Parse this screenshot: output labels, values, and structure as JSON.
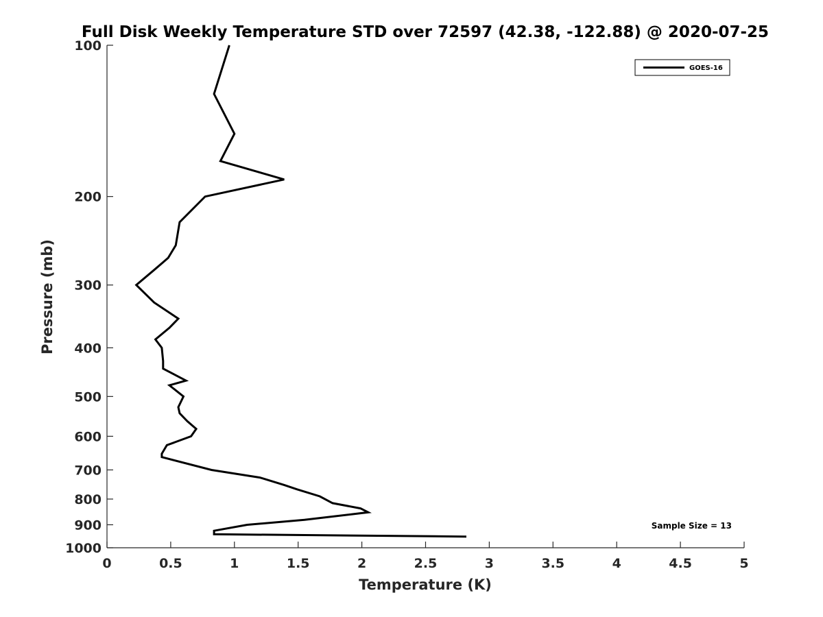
{
  "chart_data": {
    "type": "line",
    "title": "Full Disk Weekly Temperature STD over 72597 (42.38, -122.88) @ 2020-07-25",
    "xlabel": "Temperature (K)",
    "ylabel": "Pressure (mb)",
    "xlim": [
      0,
      5
    ],
    "ylim": [
      1000,
      100
    ],
    "y_scale": "log",
    "x_ticks": [
      0,
      0.5,
      1,
      1.5,
      2,
      2.5,
      3,
      3.5,
      4,
      4.5,
      5
    ],
    "x_tick_labels": [
      "0",
      "0.5",
      "1",
      "1.5",
      "2",
      "2.5",
      "3",
      "3.5",
      "4",
      "4.5",
      "5"
    ],
    "y_ticks": [
      100,
      200,
      300,
      400,
      500,
      600,
      700,
      800,
      900,
      1000
    ],
    "y_tick_labels": [
      "100",
      "200",
      "300",
      "400",
      "500",
      "600",
      "700",
      "800",
      "900",
      "1000"
    ],
    "grid": false,
    "legend_position": "top-right",
    "series_color": "#000000",
    "series": [
      {
        "name": "GOES-16",
        "points": [
          [
            0.96,
            100
          ],
          [
            0.84,
            125
          ],
          [
            1.0,
            150
          ],
          [
            0.89,
            170
          ],
          [
            1.39,
            185
          ],
          [
            0.77,
            200
          ],
          [
            0.57,
            225
          ],
          [
            0.54,
            250
          ],
          [
            0.48,
            265
          ],
          [
            0.37,
            280
          ],
          [
            0.23,
            300
          ],
          [
            0.37,
            325
          ],
          [
            0.56,
            350
          ],
          [
            0.49,
            365
          ],
          [
            0.38,
            385
          ],
          [
            0.43,
            400
          ],
          [
            0.44,
            425
          ],
          [
            0.44,
            440
          ],
          [
            0.62,
            465
          ],
          [
            0.49,
            475
          ],
          [
            0.6,
            500
          ],
          [
            0.56,
            525
          ],
          [
            0.57,
            540
          ],
          [
            0.63,
            560
          ],
          [
            0.7,
            580
          ],
          [
            0.66,
            600
          ],
          [
            0.47,
            625
          ],
          [
            0.43,
            650
          ],
          [
            0.43,
            660
          ],
          [
            0.82,
            700
          ],
          [
            1.2,
            725
          ],
          [
            1.39,
            750
          ],
          [
            1.49,
            765
          ],
          [
            1.67,
            790
          ],
          [
            1.77,
            815
          ],
          [
            1.99,
            835
          ],
          [
            2.05,
            850
          ],
          [
            1.55,
            880
          ],
          [
            1.1,
            900
          ],
          [
            0.84,
            925
          ],
          [
            0.84,
            940
          ],
          [
            2.82,
            950
          ]
        ]
      }
    ],
    "annotation": "Sample Size = 13"
  }
}
